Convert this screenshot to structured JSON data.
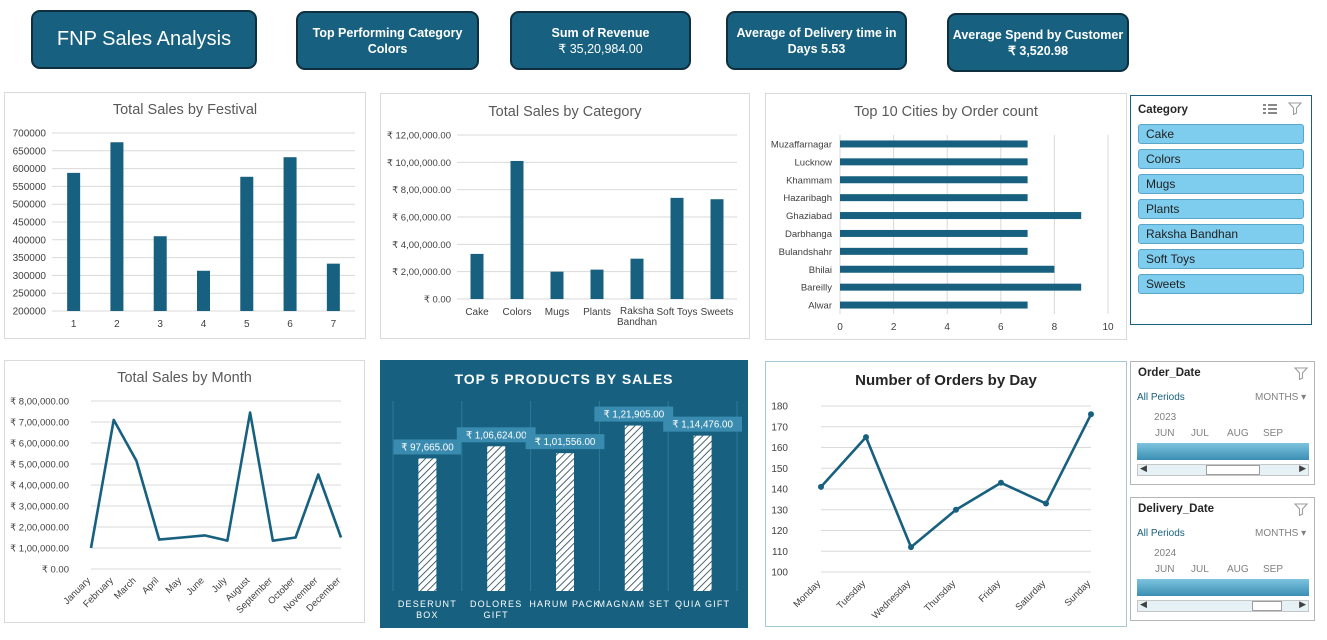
{
  "dashboard": {
    "title": "FNP Sales Analysis",
    "kpis": [
      {
        "label": "Top Performing Category",
        "value": "Colors"
      },
      {
        "label": "Sum of Revenue",
        "value": "₹ 35,20,984.00"
      },
      {
        "label": "Average of Delivery time in",
        "value": "Days 5.53"
      },
      {
        "label": "Average Spend by Customer",
        "value": "₹ 3,520.98"
      }
    ]
  },
  "charts": [
    {
      "id": "festival",
      "type": "bar",
      "title": "Total Sales by Festival",
      "categories": [
        "1",
        "2",
        "3",
        "4",
        "5",
        "6",
        "7"
      ],
      "values": [
        588000,
        674000,
        410000,
        313000,
        577000,
        632000,
        333000
      ],
      "ylim": [
        200000,
        700000
      ],
      "yticks": [
        "700000",
        "650000",
        "600000",
        "550000",
        "500000",
        "450000",
        "400000",
        "350000",
        "300000",
        "250000",
        "200000"
      ],
      "color": "#17607f"
    },
    {
      "id": "category",
      "type": "bar",
      "title": "Total Sales by Category",
      "categories": [
        "Cake",
        "Colors",
        "Mugs",
        "Plants",
        "Raksha Bandhan",
        "Soft Toys",
        "Sweets"
      ],
      "values": [
        330000,
        1010000,
        200000,
        215000,
        295000,
        740000,
        730000
      ],
      "ylim": [
        0,
        1200000
      ],
      "yticks": [
        "₹ 12,00,000.00",
        "₹ 10,00,000.00",
        "₹ 8,00,000.00",
        "₹ 6,00,000.00",
        "₹ 4,00,000.00",
        "₹ 2,00,000.00",
        "₹ 0.00"
      ],
      "color": "#17607f"
    },
    {
      "id": "cities",
      "type": "bar",
      "orientation": "horizontal",
      "title": "Top 10 Cities by Order count",
      "categories": [
        "Muzaffarnagar",
        "Lucknow",
        "Khammam",
        "Hazaribagh",
        "Ghaziabad",
        "Darbhanga",
        "Bulandshahr",
        "Bhilai",
        "Bareilly",
        "Alwar"
      ],
      "values": [
        7,
        7,
        7,
        7,
        9,
        7,
        7,
        8,
        9,
        7
      ],
      "xlim": [
        0,
        10
      ],
      "xticks": [
        "0",
        "2",
        "4",
        "6",
        "8",
        "10"
      ],
      "color": "#17607f"
    },
    {
      "id": "month",
      "type": "line",
      "title": "Total Sales by Month",
      "categories": [
        "January",
        "February",
        "March",
        "April",
        "May",
        "June",
        "July",
        "August",
        "September",
        "October",
        "November",
        "December"
      ],
      "values": [
        100000,
        710000,
        515000,
        140000,
        150000,
        160000,
        135000,
        745000,
        135000,
        150000,
        450000,
        150000
      ],
      "ylim": [
        0,
        800000
      ],
      "yticks": [
        "₹ 8,00,000.00",
        "₹ 7,00,000.00",
        "₹ 6,00,000.00",
        "₹ 5,00,000.00",
        "₹ 4,00,000.00",
        "₹ 3,00,000.00",
        "₹ 2,00,000.00",
        "₹ 1,00,000.00",
        "₹ 0.00"
      ],
      "color": "#17607f"
    },
    {
      "id": "products",
      "type": "bar",
      "title": "TOP 5 PRODUCTS BY SALES",
      "categories": [
        "DESERUNT BOX",
        "DOLORES GIFT",
        "HARUM PACK",
        "MAGNAM SET",
        "QUIA GIFT"
      ],
      "values": [
        97665,
        106624,
        101556,
        121905,
        114476
      ],
      "labels": [
        "₹ 97,665.00",
        "₹ 1,06,624.00",
        "₹ 1,01,556.00",
        "₹ 1,21,905.00",
        "₹ 1,14,476.00"
      ],
      "color": "#ffffff"
    },
    {
      "id": "day",
      "type": "line",
      "title": "Number of Orders by Day",
      "categories": [
        "Monday",
        "Tuesday",
        "Wednesday",
        "Thursday",
        "Friday",
        "Saturday",
        "Sunday"
      ],
      "values": [
        141,
        165,
        112,
        130,
        143,
        133,
        176
      ],
      "ylim": [
        100,
        180
      ],
      "yticks": [
        "180",
        "170",
        "160",
        "150",
        "140",
        "130",
        "120",
        "110",
        "100"
      ],
      "color": "#17607f"
    }
  ],
  "slicers": {
    "category": {
      "title": "Category",
      "items": [
        "Cake",
        "Colors",
        "Mugs",
        "Plants",
        "Raksha Bandhan",
        "Soft Toys",
        "Sweets"
      ]
    },
    "order_date": {
      "title": "Order_Date",
      "period": "All Periods",
      "level": "MONTHS",
      "year": "2023",
      "months": [
        "JUN",
        "JUL",
        "AUG",
        "SEP"
      ]
    },
    "delivery_date": {
      "title": "Delivery_Date",
      "period": "All Periods",
      "level": "MONTHS",
      "year": "2024",
      "months": [
        "JUN",
        "JUL",
        "AUG",
        "SEP"
      ]
    }
  }
}
